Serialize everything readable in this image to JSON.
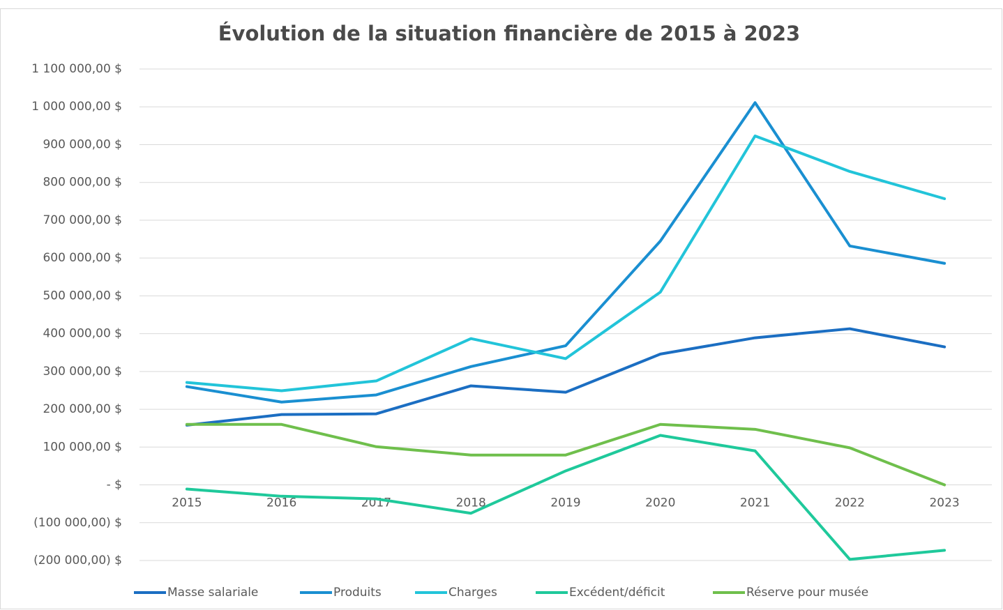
{
  "chart_data": {
    "type": "line",
    "title": "Évolution de la situation financière de 2015 à 2023",
    "categories": [
      "2015",
      "2016",
      "2017",
      "2018",
      "2019",
      "2020",
      "2021",
      "2022",
      "2023"
    ],
    "series": [
      {
        "name": "Masse salariale",
        "color": "#1b6ec2",
        "values": [
          158000,
          186000,
          188000,
          262000,
          245000,
          346000,
          389000,
          413000,
          365000
        ]
      },
      {
        "name": "Produits",
        "color": "#1a8fd1",
        "values": [
          260000,
          219000,
          238000,
          313000,
          368000,
          645000,
          1011000,
          632000,
          586000
        ]
      },
      {
        "name": "Charges",
        "color": "#22c4d9",
        "values": [
          271000,
          249000,
          275000,
          387000,
          334000,
          510000,
          923000,
          829000,
          757000
        ]
      },
      {
        "name": "Excédent/déficit",
        "color": "#1fc99b",
        "values": [
          -11000,
          -30000,
          -37000,
          -75000,
          37000,
          131000,
          90000,
          -197000,
          -173000
        ]
      },
      {
        "name": "Réserve pour musée",
        "color": "#6fbf4c",
        "values": [
          160000,
          160000,
          101000,
          79000,
          79000,
          160000,
          147000,
          98000,
          0
        ]
      }
    ],
    "ylim": [
      -200000,
      1100000
    ],
    "yticks": [
      {
        "value": 1100000,
        "label": "1 100 000,00 $"
      },
      {
        "value": 1000000,
        "label": "1 000 000,00 $"
      },
      {
        "value": 900000,
        "label": "900 000,00 $"
      },
      {
        "value": 800000,
        "label": "800 000,00 $"
      },
      {
        "value": 700000,
        "label": "700 000,00 $"
      },
      {
        "value": 600000,
        "label": "600 000,00 $"
      },
      {
        "value": 500000,
        "label": "500 000,00 $"
      },
      {
        "value": 400000,
        "label": "400 000,00 $"
      },
      {
        "value": 300000,
        "label": "300 000,00 $"
      },
      {
        "value": 200000,
        "label": "200 000,00 $"
      },
      {
        "value": 100000,
        "label": "100 000,00 $"
      },
      {
        "value": 0,
        "label": "-   $"
      },
      {
        "value": -100000,
        "label": "(100 000,00) $"
      },
      {
        "value": -200000,
        "label": "(200 000,00) $"
      }
    ],
    "grid": true,
    "legend": "bottom"
  }
}
